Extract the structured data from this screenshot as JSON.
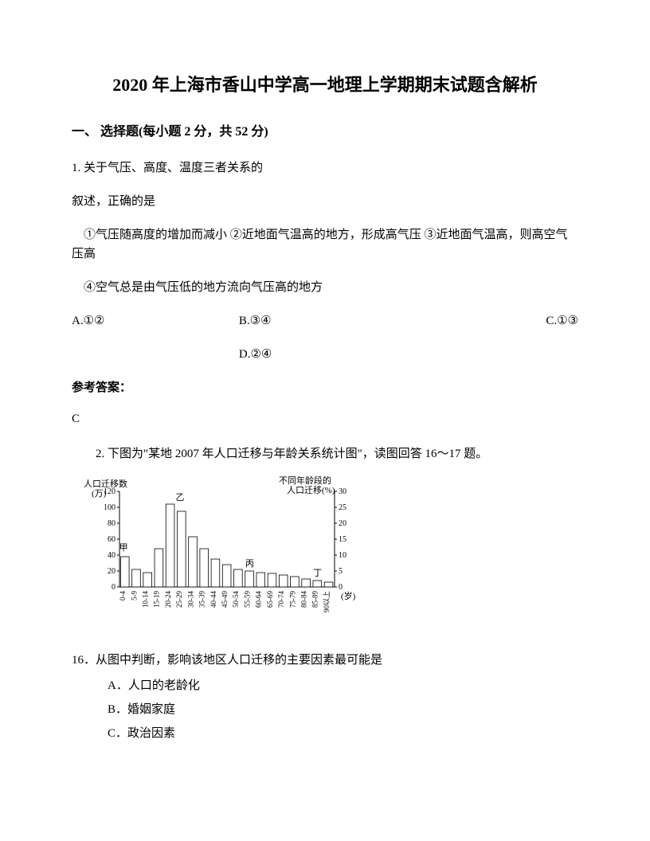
{
  "title": "2020 年上海市香山中学高一地理上学期期末试题含解析",
  "section_header": "一、 选择题(每小题 2 分，共 52 分)",
  "q1": {
    "stem_line1": "1. 关于气压、高度、温度三者关系的",
    "stem_line2": "叙述，正确的是",
    "statement1": "①气压随高度的增加而减小  ②近地面气温高的地方，形成高气压  ③近地面气温高，则高空气压高",
    "statement2": "④空气总是由气压低的地方流向气压高的地方",
    "opt_a": "A.①②",
    "opt_b": "B.③④",
    "opt_c": "C.①③",
    "opt_d": "D.②④"
  },
  "answer_label": "参考答案：",
  "answer_value": "C",
  "q2_intro": "2. 下图为\"某地 2007 年人口迁移与年龄关系统计图\"，读图回答 16～17 题。",
  "chart": {
    "left_axis_label1": "人口迁移数",
    "left_axis_label2": "(万)",
    "right_axis_label1": "不同年龄段的",
    "right_axis_label2": "人口迁移(%)",
    "x_unit": "(岁)",
    "left_ticks": [
      0,
      20,
      40,
      60,
      80,
      100,
      120
    ],
    "right_ticks": [
      0,
      5,
      10,
      15,
      20,
      25,
      30
    ],
    "x_categories": [
      "0-4",
      "5-9",
      "10-14",
      "15-19",
      "20-24",
      "25-29",
      "30-34",
      "35-39",
      "40-44",
      "45-49",
      "50-54",
      "55-59",
      "60-64",
      "65-69",
      "70-74",
      "75-79",
      "80-84",
      "85-89",
      "90以上"
    ],
    "bar_values": [
      38,
      22,
      18,
      48,
      104,
      95,
      63,
      48,
      35,
      28,
      22,
      20,
      18,
      17,
      15,
      13,
      10,
      8,
      6
    ],
    "markers": {
      "jia": "甲",
      "yi": "乙",
      "bing": "丙",
      "ding": "丁"
    },
    "bar_fill": "#ffffff",
    "bar_stroke": "#000000",
    "axis_color": "#000000"
  },
  "q16": {
    "stem": "16．从图中判断，影响该地区人口迁移的主要因素最可能是",
    "opt_a": "A．人口的老龄化",
    "opt_b": "B．婚姻家庭",
    "opt_c": "C．政治因素"
  }
}
